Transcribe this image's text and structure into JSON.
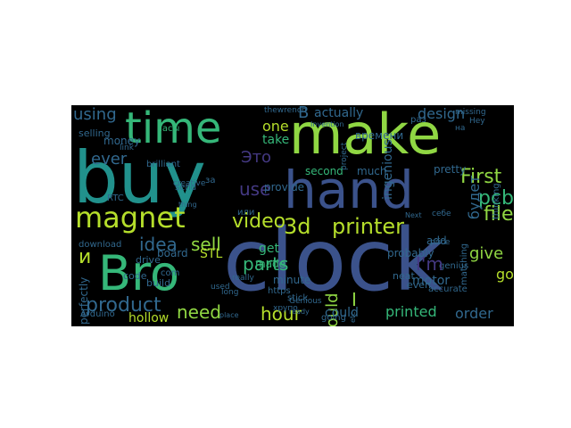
{
  "colors": {
    "background": "#000000",
    "palette": [
      "#35b779",
      "#31688e",
      "#443983",
      "#440154",
      "#90d743",
      "#21918c",
      "#fde725",
      "#3b528b"
    ]
  },
  "words": [
    {
      "text": "buy",
      "color": "#21918c"
    },
    {
      "text": "hand",
      "color": "#3b528b"
    },
    {
      "text": "clock",
      "color": "#3b528b"
    },
    {
      "text": "make",
      "color": "#90d743"
    },
    {
      "text": "time",
      "color": "#35b779"
    },
    {
      "text": "Bro",
      "color": "#35b779"
    },
    {
      "text": "magnet",
      "color": "#b5de2b"
    },
    {
      "text": "3d",
      "color": "#b5de2b"
    },
    {
      "text": "printer",
      "color": "#b5de2b"
    },
    {
      "text": "First",
      "color": "#90d743"
    },
    {
      "text": "pcb",
      "color": "#35b779"
    },
    {
      "text": "file",
      "color": "#90d743"
    },
    {
      "text": "product",
      "color": "#31688e"
    },
    {
      "text": "video",
      "color": "#b5de2b"
    },
    {
      "text": "sell",
      "color": "#90d743"
    },
    {
      "text": "idea",
      "color": "#31688e"
    },
    {
      "text": "parts",
      "color": "#35b779"
    },
    {
      "text": "need",
      "color": "#90d743"
    },
    {
      "text": "hour",
      "color": "#b5de2b"
    },
    {
      "text": "use",
      "color": "#443983"
    },
    {
      "text": "using",
      "color": "#31688e"
    },
    {
      "text": "ever",
      "color": "#31688e"
    },
    {
      "text": "actually",
      "color": "#31688e"
    },
    {
      "text": "design",
      "color": "#31688e"
    },
    {
      "text": "one",
      "color": "#b5de2b"
    },
    {
      "text": "Это",
      "color": "#443983"
    },
    {
      "text": "would",
      "color": "#90d743"
    },
    {
      "text": "give",
      "color": "#90d743"
    },
    {
      "text": "order",
      "color": "#31688e"
    },
    {
      "text": "printed",
      "color": "#35b779"
    },
    {
      "text": "could",
      "color": "#31688e"
    },
    {
      "text": "motor",
      "color": "#31688e"
    },
    {
      "text": "go",
      "color": "#b5de2b"
    },
    {
      "text": "будет",
      "color": "#31688e"
    },
    {
      "text": "ingenious",
      "color": "#31688e"
    },
    {
      "text": "second",
      "color": "#35b779"
    },
    {
      "text": "much",
      "color": "#31688e"
    },
    {
      "text": "pretty",
      "color": "#31688e"
    },
    {
      "text": "board",
      "color": "#31688e"
    },
    {
      "text": "STL",
      "color": "#b5de2b"
    },
    {
      "text": "get",
      "color": "#35b779"
    },
    {
      "text": "made",
      "color": "#35b779"
    },
    {
      "text": "minute",
      "color": "#31688e"
    },
    {
      "text": "provide",
      "color": "#31688e"
    },
    {
      "text": "take",
      "color": "#35b779"
    },
    {
      "text": "hollow",
      "color": "#b5de2b"
    },
    {
      "text": "Arduino",
      "color": "#31688e"
    },
    {
      "text": "probably",
      "color": "#31688e"
    },
    {
      "text": "add",
      "color": "#31688e"
    },
    {
      "text": "neat",
      "color": "#31688e"
    },
    {
      "text": "even",
      "color": "#31688e"
    },
    {
      "text": "accurate",
      "color": "#31688e"
    },
    {
      "text": "genius",
      "color": "#31688e"
    },
    {
      "text": "matching",
      "color": "#31688e"
    },
    {
      "text": "thinking",
      "color": "#31688e"
    },
    {
      "text": "money",
      "color": "#31688e"
    },
    {
      "text": "selling",
      "color": "#31688e"
    },
    {
      "text": "perfectly",
      "color": "#31688e"
    },
    {
      "text": "и",
      "color": "#b5de2b"
    },
    {
      "text": "I",
      "color": "#90d743"
    },
    {
      "text": "I'm",
      "color": "#443983"
    },
    {
      "text": "В",
      "color": "#31688e"
    },
    {
      "text": "часы",
      "color": "#35b779"
    },
    {
      "text": "времени",
      "color": "#31688e"
    },
    {
      "text": "https",
      "color": "#31688e"
    },
    {
      "text": "или",
      "color": "#31688e"
    },
    {
      "text": "download",
      "color": "#31688e"
    },
    {
      "text": "drive",
      "color": "#31688e"
    },
    {
      "text": "code",
      "color": "#31688e"
    },
    {
      "text": "build",
      "color": "#31688e"
    },
    {
      "text": "com",
      "color": "#31688e"
    },
    {
      "text": "going",
      "color": "#31688e"
    },
    {
      "text": "stick",
      "color": "#31688e"
    },
    {
      "text": "send",
      "color": "#31688e"
    },
    {
      "text": "brilliant",
      "color": "#31688e"
    },
    {
      "text": "RTC",
      "color": "#31688e"
    },
    {
      "text": "link",
      "color": "#31688e"
    },
    {
      "text": "Genious",
      "color": "#31688e"
    },
    {
      "text": "really",
      "color": "#31688e"
    },
    {
      "text": "used",
      "color": "#31688e"
    },
    {
      "text": "long",
      "color": "#31688e"
    },
    {
      "text": "price",
      "color": "#31688e"
    },
    {
      "text": "себе",
      "color": "#31688e"
    },
    {
      "text": "Hey",
      "color": "#31688e"
    },
    {
      "text": "на",
      "color": "#31688e"
    },
    {
      "text": "за",
      "color": "#31688e"
    },
    {
      "text": "thewrench",
      "color": "#31688e"
    },
    {
      "text": "Invention",
      "color": "#31688e"
    },
    {
      "text": "creative",
      "color": "#31688e"
    },
    {
      "text": "Next",
      "color": "#31688e"
    },
    {
      "text": "missing",
      "color": "#31688e"
    },
    {
      "text": "хрупо",
      "color": "#31688e"
    },
    {
      "text": "project",
      "color": "#31688e"
    },
    {
      "text": "thing",
      "color": "#31688e"
    },
    {
      "text": "раз",
      "color": "#31688e"
    },
    {
      "text": "etc",
      "color": "#31688e"
    },
    {
      "text": "ready",
      "color": "#31688e"
    },
    {
      "text": "place",
      "color": "#31688e"
    }
  ]
}
